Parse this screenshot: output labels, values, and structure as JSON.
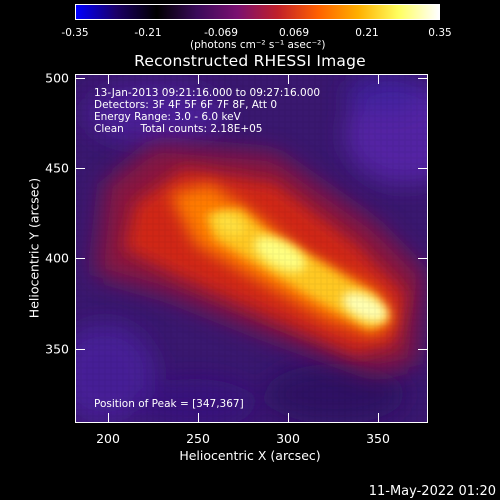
{
  "colorbar": {
    "tick_labels": [
      "-0.35",
      "-0.21",
      "-0.069",
      "0.069",
      "0.21",
      "0.35"
    ],
    "unit_label": "(photons cm⁻² s⁻¹ asec⁻²)",
    "colormap": [
      "#0000ff",
      "#1a0066",
      "#000000",
      "#3a0a5a",
      "#7a1070",
      "#c0202a",
      "#ff6000",
      "#ffb000",
      "#ffff60",
      "#ffffff"
    ]
  },
  "plot": {
    "title": "Reconstructed RHESSI Image",
    "x_axis_title": "Heliocentric X (arcsec)",
    "y_axis_title": "Heliocentric Y (arcsec)",
    "x_tick_labels": [
      "200",
      "250",
      "300",
      "350"
    ],
    "y_tick_labels": [
      "500",
      "450",
      "400",
      "350"
    ],
    "x_range": [
      182,
      376
    ],
    "y_range": [
      308,
      501
    ]
  },
  "annotations": {
    "time_range": "13-Jan-2013 09:21:16.000 to 09:27:16.000",
    "detectors": "Detectors: 3F 4F 5F 6F 7F 8F, Att 0",
    "energy_range": "Energy Range: 3.0 - 6.0 keV",
    "clean_counts": "Clean     Total counts: 2.18E+05",
    "peak_position": "Position of Peak = [347,367]"
  },
  "timestamp": "11-May-2022 01:20"
}
